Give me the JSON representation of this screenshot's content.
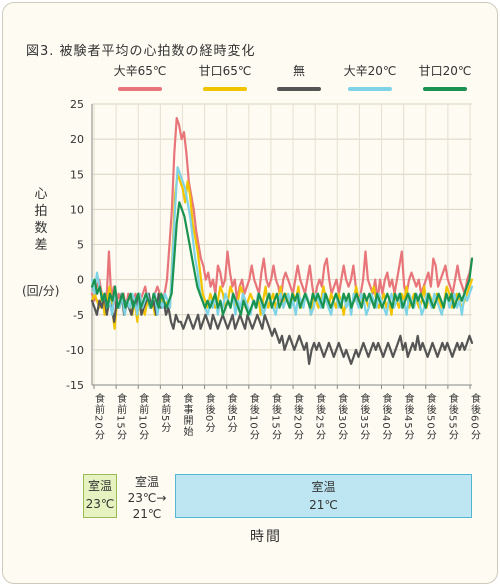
{
  "figure": {
    "title": "図3. 被験者平均の心拍数の経時変化",
    "ylabel_chars": [
      "心",
      "拍",
      "数",
      "差"
    ],
    "ylabel_unit": "(回/分)",
    "xlabel": "時間",
    "rooms": [
      {
        "line1": "室温",
        "line2": "23℃"
      },
      {
        "line1": "室温",
        "line2": "23℃→",
        "line3": "21℃"
      },
      {
        "line1": "室温",
        "line2": "21℃"
      }
    ]
  },
  "chart_data": {
    "type": "line",
    "ylabel": "心拍数差(回/分)",
    "xlabel": "時間",
    "ylim": [
      -15,
      25
    ],
    "yticks": [
      25,
      20,
      15,
      10,
      5,
      0,
      -5,
      -10,
      -15
    ],
    "grid": true,
    "legend_position": "top",
    "x_tick_labels": [
      "食前20分",
      "食前15分",
      "食前10分",
      "食前5分",
      "食事開始",
      "食後0分",
      "食後5分",
      "食後10分",
      "食後15分",
      "食後20分",
      "食後25分",
      "食後30分",
      "食後35分",
      "食後40分",
      "食後45分",
      "食後50分",
      "食後55分",
      "食後60分"
    ],
    "series": [
      {
        "name": "大辛65℃",
        "color": "#e8757a",
        "values": [
          -2,
          -3,
          -1,
          0,
          -2,
          -4,
          -3,
          4,
          -3,
          -1,
          -4,
          -2,
          -3,
          -2,
          -4,
          -2,
          -3,
          -3,
          -2,
          -4,
          -3,
          -2,
          -1,
          -3,
          -4,
          -3,
          -2,
          -1,
          -2,
          -3,
          -2,
          0,
          5,
          10,
          18,
          23,
          22,
          20,
          21,
          18,
          14,
          12,
          10,
          7,
          5,
          3,
          2,
          0,
          1,
          -1,
          0,
          -2,
          2,
          1,
          -1,
          0,
          4,
          1,
          -1,
          0,
          -3,
          -1,
          0,
          -2,
          -1,
          0,
          2,
          0,
          -1,
          -2,
          1,
          3,
          0,
          -1,
          0,
          2,
          0,
          -1,
          -3,
          0,
          1,
          0,
          -1,
          -2,
          0,
          2,
          0,
          -1,
          -2,
          0,
          2,
          -1,
          -3,
          -1,
          0,
          -1,
          2,
          3,
          0,
          -2,
          -1,
          0,
          -2,
          0,
          2,
          0,
          -1,
          0,
          2,
          -1,
          -3,
          -2,
          0,
          4,
          0,
          -1,
          -2,
          0,
          -3,
          0,
          -2,
          0,
          1,
          -1,
          0,
          -2,
          0,
          2,
          4,
          -1,
          -2,
          0,
          1,
          0,
          -1,
          0,
          -2,
          -1,
          0,
          1,
          -1,
          3,
          2,
          -1,
          0,
          1,
          2,
          0,
          -1,
          -2,
          0,
          2,
          0,
          -1,
          -2,
          0,
          1,
          3
        ]
      },
      {
        "name": "甘口65℃",
        "color": "#f2c400",
        "values": [
          -3,
          -2,
          -3,
          -4,
          -2,
          -5,
          -3,
          -1,
          -4,
          -7,
          -3,
          -4,
          -2,
          -5,
          -3,
          -4,
          -5,
          -3,
          -6,
          -2,
          -4,
          -5,
          -3,
          -4,
          -3,
          -5,
          -4,
          -2,
          -3,
          -4,
          -3,
          -4,
          4,
          12,
          15,
          14,
          13,
          11,
          14,
          12,
          8,
          6,
          4,
          1,
          -2,
          -3,
          -4,
          -2,
          -3,
          -4,
          -3,
          -1,
          -2,
          -4,
          -3,
          -1,
          -2,
          -4,
          -3,
          -1,
          -2,
          -4,
          -3,
          -2,
          -3,
          -4,
          -2,
          -5,
          -3,
          -1,
          -4,
          -3,
          -2,
          -4,
          -3,
          -1,
          -4,
          -2,
          -3,
          -4,
          -2,
          -3,
          -1,
          -4,
          -3,
          -2,
          -3,
          -5,
          -2,
          -3,
          -4,
          -3,
          -1,
          -3,
          -4,
          -2,
          -3,
          -4,
          -2,
          -3,
          -5,
          -3,
          -2,
          -4,
          -3,
          -1,
          -3,
          -4,
          -2,
          -3,
          -4,
          -2,
          -1,
          -3,
          -4,
          -3,
          -2,
          -4,
          -3,
          -5,
          -2,
          -3,
          -4,
          -2,
          -3,
          -1,
          -4,
          -3,
          -2,
          -3,
          -4,
          -3,
          -1,
          -4,
          -2,
          -3,
          -4,
          -2,
          -3,
          -4,
          -3,
          -1,
          -2,
          -4,
          -3,
          -2,
          -3,
          -4,
          -3,
          -2,
          -1,
          0
        ]
      },
      {
        "name": "無",
        "color": "#555555",
        "values": [
          -3,
          -4,
          -5,
          -3,
          -4,
          -2,
          -5,
          -3,
          -4,
          -6,
          -3,
          -4,
          -2,
          -5,
          -3,
          -4,
          -5,
          -3,
          -4,
          -2,
          -5,
          -4,
          -3,
          -2,
          -4,
          -3,
          -5,
          -2,
          -4,
          -3,
          -5,
          -4,
          -6,
          -7,
          -5,
          -6,
          -6,
          -7,
          -6,
          -5,
          -6,
          -7,
          -6,
          -5,
          -7,
          -6,
          -5,
          -6,
          -7,
          -5,
          -6,
          -7,
          -6,
          -5,
          -6,
          -7,
          -6,
          -5,
          -7,
          -6,
          -5,
          -6,
          -7,
          -5,
          -6,
          -7,
          -6,
          -5,
          -6,
          -7,
          -5,
          -6,
          -7,
          -8,
          -7,
          -8,
          -9,
          -8,
          -10,
          -9,
          -8,
          -9,
          -10,
          -9,
          -8,
          -9,
          -10,
          -9,
          -12,
          -10,
          -9,
          -10,
          -9,
          -10,
          -11,
          -10,
          -9,
          -10,
          -11,
          -10,
          -9,
          -10,
          -11,
          -10,
          -11,
          -12,
          -11,
          -10,
          -11,
          -10,
          -9,
          -10,
          -11,
          -10,
          -9,
          -10,
          -9,
          -10,
          -11,
          -10,
          -9,
          -10,
          -11,
          -10,
          -9,
          -8,
          -10,
          -9,
          -11,
          -10,
          -9,
          -10,
          -8,
          -10,
          -9,
          -10,
          -11,
          -10,
          -9,
          -10,
          -11,
          -10,
          -9,
          -10,
          -9,
          -10,
          -11,
          -10,
          -9,
          -10,
          -9,
          -10,
          -9,
          -8,
          -9
        ]
      },
      {
        "name": "大辛20℃",
        "color": "#7fd3e6",
        "values": [
          0,
          -2,
          1,
          -1,
          -3,
          -2,
          -4,
          -3,
          -5,
          -2,
          -3,
          -4,
          -2,
          -5,
          -3,
          -4,
          -2,
          -3,
          -5,
          -2,
          -4,
          -3,
          -2,
          -4,
          -3,
          -2,
          -5,
          -3,
          -4,
          -2,
          -3,
          -4,
          3,
          10,
          16,
          15,
          14,
          13,
          11,
          9,
          6,
          3,
          1,
          -2,
          -3,
          -4,
          -5,
          -3,
          -4,
          -2,
          -5,
          -3,
          -4,
          -2,
          -3,
          -4,
          -2,
          -5,
          -3,
          -4,
          -2,
          -3,
          -4,
          -5,
          -3,
          -4,
          -2,
          -3,
          -5,
          -4,
          -2,
          -3,
          -4,
          -5,
          -3,
          -2,
          -4,
          -3,
          -2,
          -4,
          -3,
          -5,
          -2,
          -3,
          -4,
          -2,
          -3,
          -5,
          -4,
          -2,
          -3,
          -4,
          -2,
          -3,
          -4,
          -5,
          -3,
          -2,
          -4,
          -3,
          -2,
          -4,
          -3,
          -5,
          -2,
          -3,
          -4,
          -2,
          -3,
          -5,
          -4,
          -2,
          -3,
          -4,
          -2,
          -3,
          -4,
          -5,
          -3,
          -2,
          -4,
          -3,
          -2,
          -4,
          -3,
          -5,
          -2,
          -3,
          -4,
          -2,
          -3,
          -5,
          -4,
          -2,
          -3,
          -4,
          -2,
          -3,
          -4,
          -5,
          -3,
          -2,
          -4,
          -3,
          -2,
          -4,
          -3,
          -5,
          -2,
          -3,
          -2,
          -1
        ]
      },
      {
        "name": "甘口20℃",
        "color": "#1a9350",
        "values": [
          -1,
          0,
          -2,
          -1,
          -3,
          -2,
          -4,
          -2,
          -3,
          -1,
          -4,
          -3,
          -2,
          -4,
          -3,
          -2,
          -4,
          -3,
          -2,
          -4,
          -3,
          -2,
          -3,
          -4,
          -2,
          -3,
          -4,
          -2,
          -3,
          -4,
          -3,
          -2,
          3,
          8,
          11,
          10,
          9,
          7,
          5,
          3,
          1,
          -1,
          -2,
          -3,
          -4,
          -3,
          -4,
          -3,
          -2,
          -4,
          -3,
          -5,
          -4,
          -3,
          -4,
          -2,
          -3,
          -4,
          -5,
          -3,
          -4,
          -5,
          -4,
          -3,
          -4,
          -2,
          -3,
          -4,
          -3,
          -2,
          -4,
          -3,
          -2,
          -4,
          -3,
          -2,
          -3,
          -4,
          -2,
          -3,
          -2,
          -4,
          -3,
          -2,
          -3,
          -4,
          -2,
          -3,
          -2,
          -3,
          -4,
          -2,
          -3,
          -4,
          -3,
          -2,
          -3,
          -4,
          -2,
          -3,
          -2,
          -4,
          -3,
          -2,
          -3,
          -4,
          -2,
          -3,
          -2,
          -3,
          -4,
          -2,
          -3,
          -4,
          -3,
          -2,
          -3,
          -4,
          -2,
          -3,
          -2,
          -4,
          -3,
          -2,
          -3,
          -4,
          -2,
          -3,
          -2,
          -3,
          -4,
          -2,
          -3,
          -4,
          -3,
          -2,
          -3,
          -4,
          -2,
          -3,
          -2,
          -4,
          -3,
          -2,
          -3,
          -2,
          -1,
          0,
          3
        ]
      }
    ]
  }
}
